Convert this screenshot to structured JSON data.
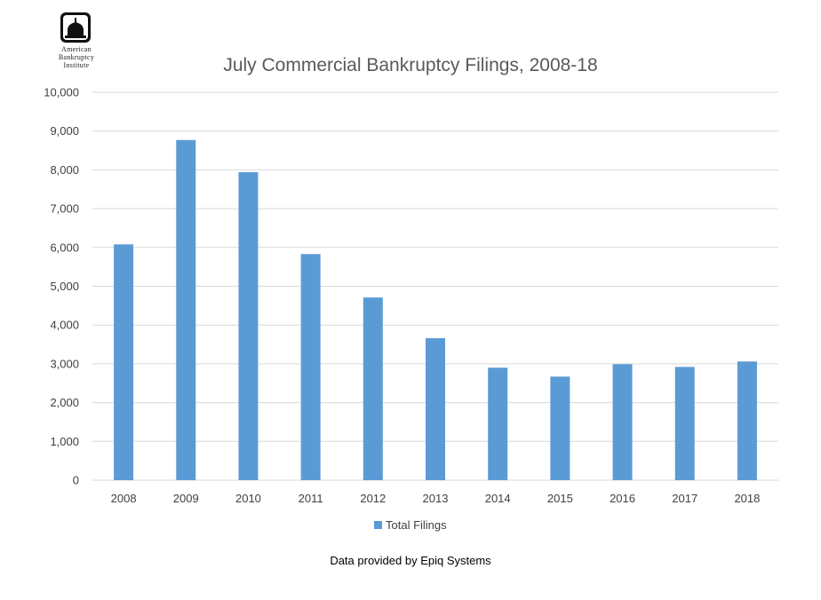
{
  "logo": {
    "name": "american-bankruptcy-institute-logo",
    "lines": [
      "American",
      "Bankruptcy",
      "Institute"
    ]
  },
  "chart_data": {
    "type": "bar",
    "title": "July Commercial Bankruptcy Filings, 2008-18",
    "categories": [
      "2008",
      "2009",
      "2010",
      "2011",
      "2012",
      "2013",
      "2014",
      "2015",
      "2016",
      "2017",
      "2018"
    ],
    "series": [
      {
        "name": "Total Filings",
        "color": "#5b9bd5",
        "values": [
          6080,
          8770,
          7940,
          5830,
          4710,
          3660,
          2900,
          2670,
          2990,
          2920,
          3060
        ]
      }
    ],
    "ylim": [
      0,
      10000
    ],
    "yticks": [
      0,
      1000,
      2000,
      3000,
      4000,
      5000,
      6000,
      7000,
      8000,
      9000,
      10000
    ],
    "ytick_labels": [
      "0",
      "1,000",
      "2,000",
      "3,000",
      "4,000",
      "5,000",
      "6,000",
      "7,000",
      "8,000",
      "9,000",
      "10,000"
    ],
    "grid": true,
    "legend_position": "bottom",
    "gridline_color": "#d9d9d9"
  },
  "footer": {
    "source": "Data provided by Epiq Systems"
  }
}
